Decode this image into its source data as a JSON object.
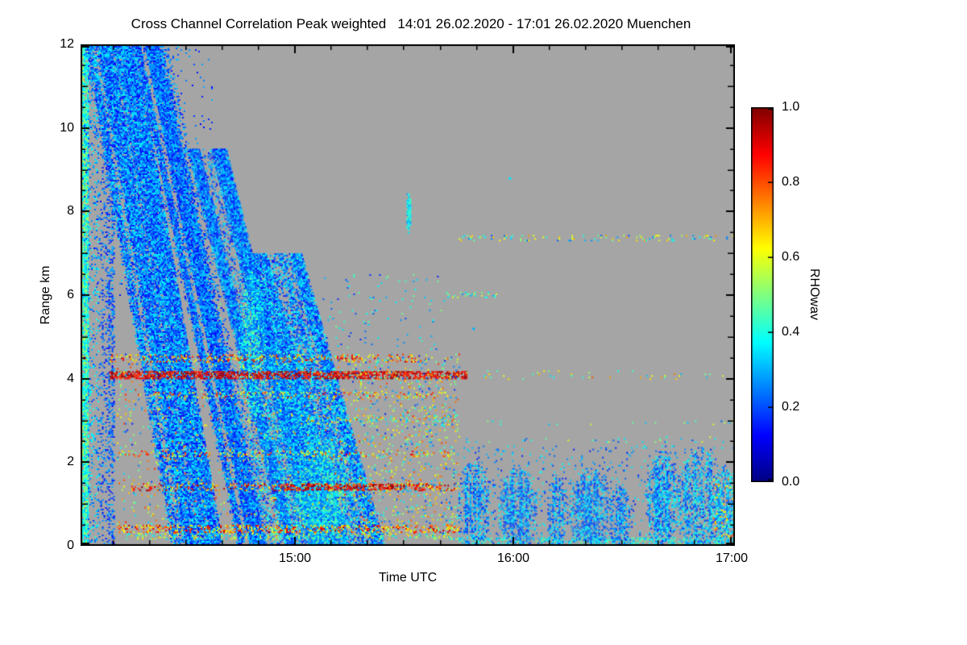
{
  "chart_data": {
    "type": "heatmap",
    "title": "Cross Channel Correlation Peak weighted",
    "subtitle": "14:01 26.02.2020 - 17:01 26.02.2020 Muenchen",
    "title_full": "Cross Channel Correlation Peak weighted   14:01 26.02.2020 - 17:01 26.02.2020 Muenchen",
    "xlabel": "Time UTC",
    "ylabel": "Range km",
    "x_start": "14:01",
    "x_end": "17:01",
    "x_minutes": 180,
    "x_ticks": {
      "labels": [
        "15:00",
        "16:00",
        "17:00"
      ],
      "minutes": [
        59,
        119,
        179
      ],
      "minor_step_min": 10
    },
    "y_range": [
      0,
      12
    ],
    "y_ticks": {
      "labels": [
        "12",
        "10",
        "8",
        "6",
        "4",
        "2",
        "0"
      ],
      "values": [
        12,
        10,
        8,
        6,
        4,
        2,
        0
      ],
      "minor_step_km": 0.5
    },
    "colorbar": {
      "label": "RHOwav",
      "ticks": [
        "1.0",
        "0.8",
        "0.6",
        "0.4",
        "0.2",
        "0.0"
      ],
      "tick_values": [
        1.0,
        0.8,
        0.6,
        0.4,
        0.2,
        0.0
      ],
      "min": 0.0,
      "max": 1.0,
      "colormap": "jet"
    },
    "no_data_color": "#a5a5a5",
    "frame_color": "#000000",
    "legend_position": "right",
    "grid": false,
    "features": [
      {
        "type": "box",
        "t": [
          0,
          2
        ],
        "r": [
          0,
          12
        ],
        "density": 0.9,
        "v": [
          0.3,
          0.55
        ],
        "streaky": false
      },
      {
        "type": "box",
        "t": [
          2,
          5
        ],
        "r": [
          0,
          12
        ],
        "density": 0.75,
        "v": [
          0.18,
          0.42
        ],
        "streaky": true
      },
      {
        "type": "box",
        "t": [
          5,
          9
        ],
        "r": [
          0,
          12
        ],
        "density": 0.4,
        "v": [
          0.12,
          0.32
        ],
        "streaky": true
      },
      {
        "type": "band",
        "r": [
          0,
          12
        ],
        "t_hi": 8,
        "t_lo": 32,
        "width": 14,
        "density": 0.42,
        "v": [
          0.12,
          0.38
        ],
        "streaks": 7
      },
      {
        "type": "band",
        "r": [
          0,
          12
        ],
        "t_hi": 19,
        "t_lo": 48,
        "width": 10,
        "density": 0.28,
        "v": [
          0.12,
          0.35
        ],
        "streaks": 5
      },
      {
        "type": "band",
        "r": [
          0,
          9.5
        ],
        "t_hi": 35,
        "t_lo": 62,
        "width": 10,
        "density": 0.35,
        "v": [
          0.12,
          0.38
        ],
        "streaks": 6
      },
      {
        "type": "band",
        "r": [
          0,
          7
        ],
        "t_hi": 52,
        "t_lo": 75,
        "width": 16,
        "density": 0.5,
        "v": [
          0.12,
          0.4
        ],
        "streaks": 8
      },
      {
        "type": "box",
        "t": [
          0,
          36
        ],
        "r": [
          6,
          12
        ],
        "density": 0.05,
        "v": [
          0.12,
          0.35
        ],
        "streaky": true
      },
      {
        "type": "blob",
        "tc": 47,
        "rc": 4.8,
        "tr": 4,
        "rr": 1.8,
        "density": 0.7,
        "v": [
          0.2,
          0.5
        ]
      },
      {
        "type": "blob",
        "tc": 58,
        "rc": 2.6,
        "tr": 12,
        "rr": 2.8,
        "density": 0.6,
        "v": [
          0.15,
          0.45
        ]
      },
      {
        "type": "blob",
        "tc": 67,
        "rc": 1.2,
        "tr": 9,
        "rr": 1.4,
        "density": 0.7,
        "v": [
          0.2,
          0.5
        ]
      },
      {
        "type": "blob",
        "tc": 90,
        "rc": 8.0,
        "tr": 0.8,
        "rr": 0.55,
        "density": 0.8,
        "v": [
          0.28,
          0.45
        ]
      },
      {
        "type": "box",
        "t": [
          8,
          106
        ],
        "r": [
          4.02,
          4.18
        ],
        "density": 0.7,
        "v": [
          0.8,
          1.0
        ]
      },
      {
        "type": "box",
        "t": [
          8,
          95
        ],
        "r": [
          4.42,
          4.58
        ],
        "density": 0.28,
        "v": [
          0.55,
          0.95
        ]
      },
      {
        "type": "box",
        "t": [
          20,
          102
        ],
        "r": [
          3.54,
          3.68
        ],
        "density": 0.2,
        "v": [
          0.5,
          0.9
        ]
      },
      {
        "type": "box",
        "t": [
          62,
          104
        ],
        "r": [
          2.98,
          3.12
        ],
        "density": 0.25,
        "v": [
          0.3,
          0.85
        ]
      },
      {
        "type": "box",
        "t": [
          10,
          102
        ],
        "r": [
          2.14,
          2.28
        ],
        "density": 0.18,
        "v": [
          0.45,
          0.9
        ]
      },
      {
        "type": "box",
        "t": [
          14,
          104
        ],
        "r": [
          1.34,
          1.5
        ],
        "density": 0.28,
        "v": [
          0.6,
          0.98
        ]
      },
      {
        "type": "box",
        "t": [
          55,
          95
        ],
        "r": [
          1.36,
          1.48
        ],
        "density": 0.5,
        "v": [
          0.8,
          1.0
        ]
      },
      {
        "type": "box",
        "t": [
          10,
          104
        ],
        "r": [
          0.32,
          0.5
        ],
        "density": 0.35,
        "v": [
          0.55,
          0.95
        ]
      },
      {
        "type": "box",
        "t": [
          12,
          104
        ],
        "r": [
          0.16,
          0.3
        ],
        "density": 0.25,
        "v": [
          0.3,
          0.7
        ]
      },
      {
        "type": "box",
        "t": [
          10,
          104
        ],
        "r": [
          0.3,
          4.6
        ],
        "density": 0.05,
        "v": [
          0.15,
          0.85
        ]
      },
      {
        "type": "box",
        "t": [
          75,
          104
        ],
        "r": [
          0.2,
          4.5
        ],
        "density": 0.06,
        "v": [
          0.2,
          0.8
        ]
      },
      {
        "type": "box",
        "t": [
          36,
          100
        ],
        "r": [
          4.7,
          6.5
        ],
        "density": 0.025,
        "v": [
          0.15,
          0.5
        ]
      },
      {
        "type": "box",
        "t": [
          104,
          180
        ],
        "r": [
          7.3,
          7.44
        ],
        "density": 0.14,
        "v": [
          0.2,
          0.75
        ]
      },
      {
        "type": "box",
        "t": [
          106,
          180
        ],
        "r": [
          4.0,
          4.2
        ],
        "density": 0.04,
        "v": [
          0.3,
          0.8
        ]
      },
      {
        "type": "box",
        "t": [
          75,
          180
        ],
        "r": [
          2.5,
          2.62
        ],
        "density": 0.05,
        "v": [
          0.2,
          0.6
        ]
      },
      {
        "type": "box",
        "t": [
          75,
          180
        ],
        "r": [
          2.9,
          3.0
        ],
        "density": 0.05,
        "v": [
          0.2,
          0.6
        ]
      },
      {
        "type": "box",
        "t": [
          100,
          116
        ],
        "r": [
          5.95,
          6.08
        ],
        "density": 0.15,
        "v": [
          0.25,
          0.6
        ]
      },
      {
        "type": "box",
        "t": [
          104,
          180
        ],
        "r": [
          0.05,
          0.2
        ],
        "density": 0.45,
        "v": [
          0.28,
          0.5
        ]
      },
      {
        "type": "box",
        "t": [
          104,
          180
        ],
        "r": [
          0,
          2.4
        ],
        "density": 0.06,
        "v": [
          0.15,
          0.4
        ]
      },
      {
        "type": "blob",
        "tc": 108,
        "rc": 1.0,
        "tr": 4.5,
        "rr": 1.05,
        "density": 0.72,
        "v": [
          0.15,
          0.4
        ]
      },
      {
        "type": "blob",
        "tc": 120,
        "rc": 0.9,
        "tr": 5.5,
        "rr": 1.0,
        "density": 0.68,
        "v": [
          0.15,
          0.4
        ]
      },
      {
        "type": "blob",
        "tc": 131,
        "rc": 0.8,
        "tr": 3,
        "rr": 0.9,
        "density": 0.62,
        "v": [
          0.15,
          0.38
        ]
      },
      {
        "type": "blob",
        "tc": 140,
        "rc": 0.9,
        "tr": 6,
        "rr": 1.0,
        "density": 0.68,
        "v": [
          0.15,
          0.4
        ]
      },
      {
        "type": "blob",
        "tc": 148,
        "rc": 0.7,
        "tr": 3,
        "rr": 0.85,
        "density": 0.6,
        "v": [
          0.15,
          0.38
        ]
      },
      {
        "type": "blob",
        "tc": 160,
        "rc": 1.1,
        "tr": 5,
        "rr": 1.2,
        "density": 0.75,
        "v": [
          0.15,
          0.42
        ]
      },
      {
        "type": "blob",
        "tc": 170,
        "rc": 1.1,
        "tr": 6,
        "rr": 1.3,
        "density": 0.78,
        "v": [
          0.15,
          0.45
        ]
      },
      {
        "type": "blob",
        "tc": 177,
        "rc": 0.9,
        "tr": 3,
        "rr": 1.0,
        "density": 0.7,
        "v": [
          0.2,
          0.45
        ]
      },
      {
        "type": "box",
        "t": [
          174,
          180
        ],
        "r": [
          0.2,
          1.6
        ],
        "density": 0.08,
        "v": [
          0.55,
          0.8
        ]
      },
      {
        "type": "dots",
        "points": [
          [
            1,
            4.5,
            0.95
          ],
          [
            108,
            5.2,
            0.3
          ],
          [
            118,
            8.8,
            0.35
          ]
        ]
      }
    ]
  }
}
